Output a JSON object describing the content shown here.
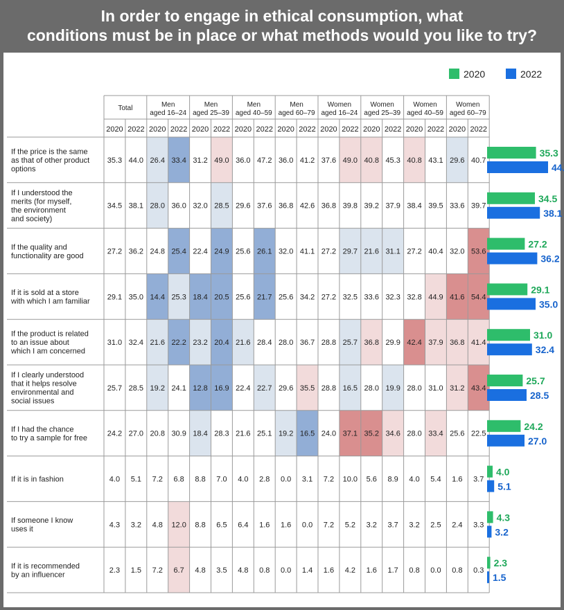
{
  "chart_data": {
    "type": "table",
    "title": "In order to engage in ethical consumption, what conditions must be in place or what methods would you like to try?",
    "legend": [
      {
        "label": "2020",
        "color": "#2ebd6b"
      },
      {
        "label": "2022",
        "color": "#1a6fe0"
      }
    ],
    "groups": [
      {
        "line1": "Total",
        "line2": ""
      },
      {
        "line1": "Men",
        "line2": "aged 16–24"
      },
      {
        "line1": "Men",
        "line2": "aged 25–39"
      },
      {
        "line1": "Men",
        "line2": "aged 40–59"
      },
      {
        "line1": "Men",
        "line2": "aged 60–79"
      },
      {
        "line1": "Women",
        "line2": "aged 16–24"
      },
      {
        "line1": "Women",
        "line2": "aged 25–39"
      },
      {
        "line1": "Women",
        "line2": "aged 40–59"
      },
      {
        "line1": "Women",
        "line2": "aged 60–79"
      }
    ],
    "years": [
      "2020",
      "2022"
    ],
    "bar_max": 50,
    "rows": [
      {
        "label": [
          "If the price is the same",
          "as that of other product",
          "options"
        ],
        "values": [
          35.3,
          44.0,
          26.4,
          33.4,
          31.2,
          49.0,
          36.0,
          47.2,
          36.0,
          41.2,
          37.6,
          49.0,
          40.8,
          45.3,
          40.8,
          43.1,
          29.6,
          40.7
        ],
        "shade": [
          "",
          "",
          "bl",
          "bd",
          "",
          "pl",
          "",
          "",
          "",
          "",
          "",
          "pl",
          "pl",
          "",
          "pl",
          "",
          "bl",
          ""
        ]
      },
      {
        "label": [
          "If I understood the",
          "merits (for myself,",
          "the environment",
          "and society)"
        ],
        "values": [
          34.5,
          38.1,
          28.0,
          36.0,
          32.0,
          28.5,
          29.6,
          37.6,
          36.8,
          42.6,
          36.8,
          39.8,
          39.2,
          37.9,
          38.4,
          39.5,
          33.6,
          39.7
        ],
        "shade": [
          "",
          "",
          "bl",
          "",
          "",
          "bl",
          "",
          "",
          "",
          "",
          "",
          "",
          "",
          "",
          "",
          "",
          "",
          ""
        ]
      },
      {
        "label": [
          "If the quality and",
          "functionality are good"
        ],
        "values": [
          27.2,
          36.2,
          24.8,
          25.4,
          22.4,
          24.9,
          25.6,
          26.1,
          32.0,
          41.1,
          27.2,
          29.7,
          21.6,
          31.1,
          27.2,
          40.4,
          32.0,
          53.6
        ],
        "shade": [
          "",
          "",
          "",
          "bd",
          "",
          "bd",
          "",
          "bd",
          "",
          "",
          "",
          "bl",
          "bl",
          "bl",
          "",
          "",
          "",
          "pd"
        ]
      },
      {
        "label": [
          "If it is sold at a store",
          "with which I am familiar"
        ],
        "values": [
          29.1,
          35.0,
          14.4,
          25.3,
          18.4,
          20.5,
          25.6,
          21.7,
          25.6,
          34.2,
          27.2,
          32.5,
          33.6,
          32.3,
          32.8,
          44.9,
          41.6,
          54.4
        ],
        "shade": [
          "",
          "",
          "bd",
          "bl",
          "bd",
          "bd",
          "",
          "bd",
          "",
          "",
          "",
          "",
          "",
          "",
          "",
          "pl",
          "pd",
          "pd"
        ]
      },
      {
        "label": [
          "If the product is related",
          "to an issue about",
          "which I am concerned"
        ],
        "values": [
          31.0,
          32.4,
          21.6,
          22.2,
          23.2,
          20.4,
          21.6,
          28.4,
          28.0,
          36.7,
          28.8,
          25.7,
          36.8,
          29.9,
          42.4,
          37.9,
          36.8,
          41.4
        ],
        "shade": [
          "",
          "",
          "bl",
          "bd",
          "bl",
          "bd",
          "bl",
          "",
          "",
          "",
          "",
          "bl",
          "pl",
          "",
          "pd",
          "pl",
          "pl",
          "pl"
        ]
      },
      {
        "label": [
          "If I clearly understood",
          "that it helps resolve",
          "environmental and",
          "social issues"
        ],
        "values": [
          25.7,
          28.5,
          19.2,
          24.1,
          12.8,
          16.9,
          22.4,
          22.7,
          29.6,
          35.5,
          28.8,
          16.5,
          28.0,
          19.9,
          28.0,
          31.0,
          31.2,
          43.4
        ],
        "shade": [
          "",
          "",
          "bl",
          "",
          "bd",
          "bd",
          "",
          "bl",
          "",
          "pl",
          "",
          "bl",
          "",
          "bl",
          "",
          "",
          "pl",
          "pd"
        ]
      },
      {
        "label": [
          "If I had the chance",
          "to try a sample for free"
        ],
        "values": [
          24.2,
          27.0,
          20.8,
          30.9,
          18.4,
          28.3,
          21.6,
          25.1,
          19.2,
          16.5,
          24.0,
          37.1,
          35.2,
          34.6,
          28.0,
          33.4,
          25.6,
          22.5
        ],
        "shade": [
          "",
          "",
          "",
          "",
          "bl",
          "",
          "",
          "",
          "bl",
          "bd",
          "",
          "pd",
          "pd",
          "pl",
          "",
          "pl",
          "",
          ""
        ]
      },
      {
        "label": [
          "If it is in fashion"
        ],
        "values": [
          4.0,
          5.1,
          7.2,
          6.8,
          8.8,
          7.0,
          4.0,
          2.8,
          0.0,
          3.1,
          7.2,
          10.0,
          5.6,
          8.9,
          4.0,
          5.4,
          1.6,
          3.7
        ],
        "shade": [
          "",
          "",
          "",
          "",
          "",
          "",
          "",
          "",
          "",
          "",
          "",
          "",
          "",
          "",
          "",
          "",
          "",
          ""
        ]
      },
      {
        "label": [
          "If someone I know",
          "uses it"
        ],
        "values": [
          4.3,
          3.2,
          4.8,
          12.0,
          8.8,
          6.5,
          6.4,
          1.6,
          1.6,
          0.0,
          7.2,
          5.2,
          3.2,
          3.7,
          3.2,
          2.5,
          2.4,
          3.3
        ],
        "shade": [
          "",
          "",
          "",
          "pl",
          "",
          "",
          "",
          "",
          "",
          "",
          "",
          "",
          "",
          "",
          "",
          "",
          "",
          ""
        ]
      },
      {
        "label": [
          "If it is recommended",
          "by an influencer"
        ],
        "values": [
          2.3,
          1.5,
          7.2,
          6.7,
          4.8,
          3.5,
          4.8,
          0.8,
          0.0,
          1.4,
          1.6,
          4.2,
          1.6,
          1.7,
          0.8,
          0.0,
          0.8,
          0.3
        ],
        "shade": [
          "",
          "",
          "",
          "pl",
          "",
          "",
          "",
          "",
          "",
          "",
          "",
          "",
          "",
          "",
          "",
          "",
          "",
          ""
        ]
      }
    ],
    "shade_colors": {
      "bl": "#dbe4ee",
      "bd": "#92aed6",
      "pl": "#f2dbdb",
      "pd": "#d98f8f"
    }
  }
}
